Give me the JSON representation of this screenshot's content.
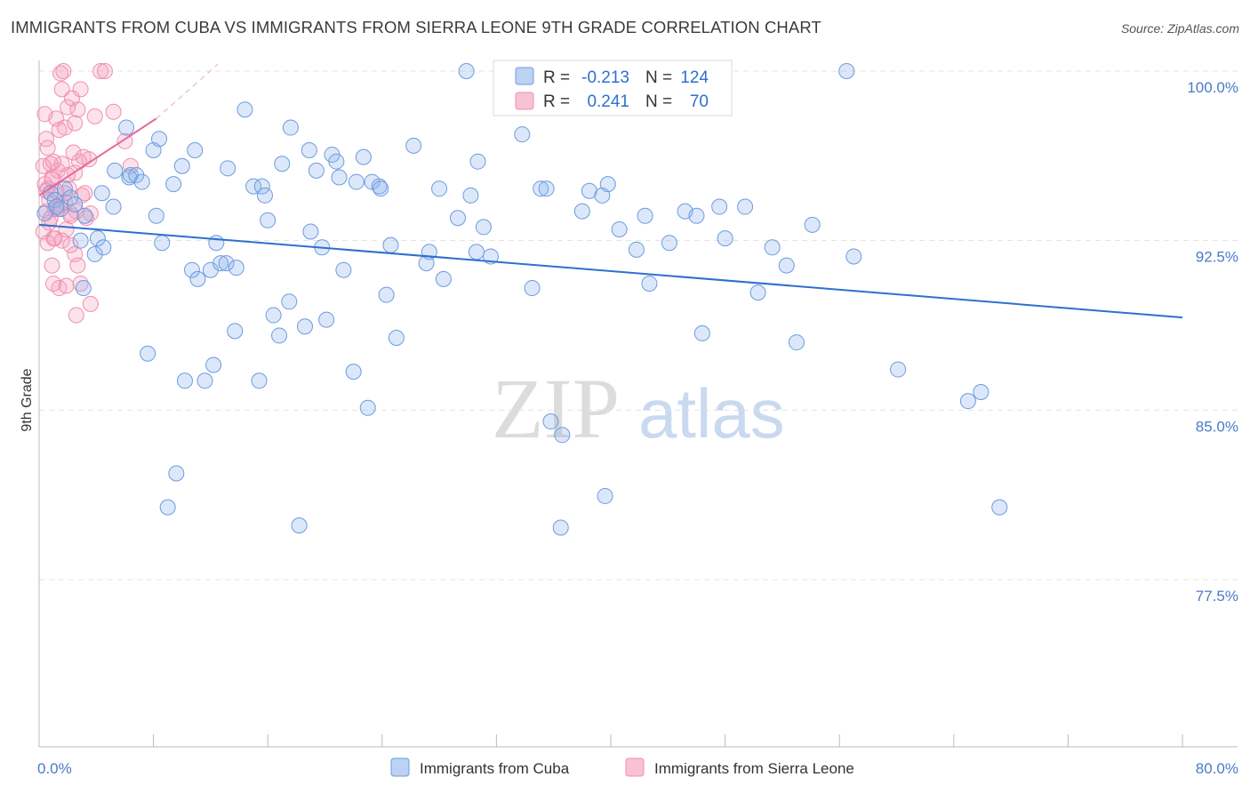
{
  "title": "IMMIGRANTS FROM CUBA VS IMMIGRANTS FROM SIERRA LEONE 9TH GRADE CORRELATION CHART",
  "source": "Source: ZipAtlas.com",
  "colors": {
    "cuba": "#6c9be0",
    "sierra_leone": "#f08fb0",
    "cuba_line": "#2f6fd0",
    "sierra_line": "#e8689a",
    "tick": "#4a7bc8"
  },
  "legend_top": [
    {
      "r_label": "R =",
      "r_value": "-0.213",
      "n_label": "N =",
      "n_value": "124"
    },
    {
      "r_label": "R =",
      "r_value": "0.241",
      "n_label": "N =",
      "n_value": "70"
    }
  ],
  "watermark": {
    "zip": "ZIP",
    "atlas": "atlas"
  },
  "chart_data": {
    "type": "scatter",
    "title": "IMMIGRANTS FROM CUBA VS IMMIGRANTS FROM SIERRA LEONE 9TH GRADE CORRELATION CHART",
    "xlabel": "",
    "ylabel": "9th Grade",
    "xlim": [
      0,
      80
    ],
    "ylim": [
      70,
      101.5
    ],
    "x_tick_labels": [
      "0.0%",
      "80.0%"
    ],
    "y_ticks": [
      100,
      92.5,
      85,
      77.5
    ],
    "y_tick_labels": [
      "100.0%",
      "92.5%",
      "85.0%",
      "77.5%"
    ],
    "legend": [
      "Immigrants from Cuba",
      "Immigrants from Sierra Leone"
    ],
    "series": [
      {
        "name": "Immigrants from Cuba",
        "r": -0.213,
        "n": 124,
        "trend": [
          [
            0.0,
            93.2
          ],
          [
            80.0,
            89.1
          ]
        ],
        "points": [
          [
            0.4,
            93.7
          ],
          [
            0.8,
            94.6
          ],
          [
            1.1,
            94.3
          ],
          [
            1.5,
            93.9
          ],
          [
            1.8,
            94.8
          ],
          [
            2.2,
            94.4
          ],
          [
            1.2,
            94.0
          ],
          [
            2.5,
            94.1
          ],
          [
            2.9,
            92.5
          ],
          [
            3.1,
            90.4
          ],
          [
            3.2,
            93.6
          ],
          [
            3.9,
            91.9
          ],
          [
            4.1,
            92.6
          ],
          [
            4.4,
            94.6
          ],
          [
            4.5,
            92.2
          ],
          [
            5.2,
            94.0
          ],
          [
            5.3,
            95.6
          ],
          [
            6.1,
            97.5
          ],
          [
            6.3,
            95.3
          ],
          [
            6.4,
            95.4
          ],
          [
            6.8,
            95.4
          ],
          [
            7.2,
            95.1
          ],
          [
            7.6,
            87.5
          ],
          [
            8.0,
            96.5
          ],
          [
            8.2,
            93.6
          ],
          [
            8.4,
            97.0
          ],
          [
            8.6,
            92.4
          ],
          [
            9.4,
            95.0
          ],
          [
            9.0,
            80.7
          ],
          [
            9.6,
            82.2
          ],
          [
            10.0,
            95.8
          ],
          [
            10.2,
            86.3
          ],
          [
            10.7,
            91.2
          ],
          [
            10.9,
            96.5
          ],
          [
            11.1,
            90.8
          ],
          [
            11.6,
            86.3
          ],
          [
            12.0,
            91.2
          ],
          [
            12.2,
            87.0
          ],
          [
            12.4,
            92.4
          ],
          [
            12.7,
            91.5
          ],
          [
            13.1,
            91.5
          ],
          [
            13.2,
            95.7
          ],
          [
            13.7,
            88.5
          ],
          [
            13.8,
            91.3
          ],
          [
            14.4,
            98.3
          ],
          [
            15.0,
            94.9
          ],
          [
            15.4,
            86.3
          ],
          [
            15.6,
            94.9
          ],
          [
            15.8,
            94.5
          ],
          [
            16.0,
            93.4
          ],
          [
            16.4,
            89.2
          ],
          [
            16.8,
            88.3
          ],
          [
            17.0,
            95.9
          ],
          [
            17.5,
            89.8
          ],
          [
            17.6,
            97.5
          ],
          [
            18.2,
            79.9
          ],
          [
            18.6,
            88.7
          ],
          [
            18.9,
            96.5
          ],
          [
            19.0,
            92.9
          ],
          [
            19.4,
            95.6
          ],
          [
            19.8,
            92.2
          ],
          [
            20.1,
            89.0
          ],
          [
            20.5,
            96.3
          ],
          [
            20.8,
            96.0
          ],
          [
            21.0,
            95.3
          ],
          [
            21.3,
            91.2
          ],
          [
            22.0,
            86.7
          ],
          [
            22.2,
            95.1
          ],
          [
            22.7,
            96.2
          ],
          [
            23.0,
            85.1
          ],
          [
            23.3,
            95.1
          ],
          [
            23.8,
            94.9
          ],
          [
            23.9,
            94.8
          ],
          [
            24.3,
            90.1
          ],
          [
            24.6,
            92.3
          ],
          [
            25.0,
            88.2
          ],
          [
            26.2,
            96.7
          ],
          [
            27.3,
            92.0
          ],
          [
            27.1,
            91.5
          ],
          [
            28.0,
            94.8
          ],
          [
            28.3,
            90.8
          ],
          [
            29.3,
            93.5
          ],
          [
            29.9,
            100.0
          ],
          [
            30.2,
            94.5
          ],
          [
            30.7,
            96.0
          ],
          [
            31.1,
            93.1
          ],
          [
            31.6,
            91.8
          ],
          [
            30.6,
            92.0
          ],
          [
            33.8,
            97.2
          ],
          [
            34.5,
            90.4
          ],
          [
            35.1,
            94.8
          ],
          [
            35.5,
            94.8
          ],
          [
            35.8,
            84.5
          ],
          [
            36.5,
            79.8
          ],
          [
            36.6,
            83.9
          ],
          [
            38.0,
            93.8
          ],
          [
            38.5,
            94.7
          ],
          [
            39.4,
            94.5
          ],
          [
            39.8,
            95.0
          ],
          [
            39.6,
            81.2
          ],
          [
            40.6,
            93.0
          ],
          [
            41.8,
            92.1
          ],
          [
            42.4,
            93.6
          ],
          [
            42.7,
            90.6
          ],
          [
            44.1,
            92.4
          ],
          [
            45.2,
            93.8
          ],
          [
            46.0,
            93.6
          ],
          [
            46.4,
            88.4
          ],
          [
            47.6,
            94.0
          ],
          [
            48.0,
            92.6
          ],
          [
            49.4,
            94.0
          ],
          [
            50.3,
            90.2
          ],
          [
            51.3,
            92.2
          ],
          [
            52.3,
            91.4
          ],
          [
            53.0,
            88.0
          ],
          [
            54.1,
            93.2
          ],
          [
            56.5,
            100.0
          ],
          [
            57.0,
            91.8
          ],
          [
            60.1,
            86.8
          ],
          [
            65.0,
            85.4
          ],
          [
            65.9,
            85.8
          ],
          [
            67.2,
            80.7
          ]
        ]
      },
      {
        "name": "Immigrants from Sierra Leone",
        "r": 0.241,
        "n": 70,
        "trend": [
          [
            0.0,
            94.5
          ],
          [
            8.2,
            97.9
          ]
        ],
        "trend_extension": [
          [
            8.2,
            97.9
          ],
          [
            12.5,
            100.3
          ]
        ],
        "points": [
          [
            0.3,
            95.8
          ],
          [
            0.4,
            95.0
          ],
          [
            0.5,
            93.8
          ],
          [
            0.6,
            94.8
          ],
          [
            0.7,
            94.3
          ],
          [
            0.8,
            93.5
          ],
          [
            0.9,
            95.3
          ],
          [
            1.0,
            92.6
          ],
          [
            1.1,
            93.9
          ],
          [
            1.2,
            94.7
          ],
          [
            1.3,
            95.6
          ],
          [
            1.5,
            94.1
          ],
          [
            1.6,
            95.9
          ],
          [
            1.8,
            94.2
          ],
          [
            1.9,
            93.0
          ],
          [
            2.0,
            95.4
          ],
          [
            2.1,
            94.8
          ],
          [
            2.2,
            93.7
          ],
          [
            2.4,
            96.4
          ],
          [
            2.5,
            95.5
          ],
          [
            2.6,
            93.8
          ],
          [
            2.8,
            96.0
          ],
          [
            3.0,
            94.5
          ],
          [
            3.3,
            93.5
          ],
          [
            3.5,
            96.1
          ],
          [
            0.4,
            98.1
          ],
          [
            0.5,
            97.0
          ],
          [
            0.6,
            96.6
          ],
          [
            0.8,
            95.9
          ],
          [
            1.0,
            96.0
          ],
          [
            1.2,
            97.9
          ],
          [
            1.4,
            97.4
          ],
          [
            1.6,
            99.2
          ],
          [
            1.8,
            97.5
          ],
          [
            2.0,
            98.4
          ],
          [
            2.3,
            98.8
          ],
          [
            2.5,
            97.7
          ],
          [
            2.7,
            98.3
          ],
          [
            2.9,
            99.2
          ],
          [
            3.1,
            96.2
          ],
          [
            3.9,
            98.0
          ],
          [
            4.3,
            100.0
          ],
          [
            4.6,
            100.0
          ],
          [
            5.2,
            98.2
          ],
          [
            6.0,
            96.9
          ],
          [
            6.4,
            95.8
          ],
          [
            1.5,
            99.9
          ],
          [
            1.7,
            100.0
          ],
          [
            0.3,
            92.9
          ],
          [
            0.6,
            92.4
          ],
          [
            0.9,
            91.4
          ],
          [
            1.1,
            92.6
          ],
          [
            1.4,
            90.4
          ],
          [
            1.6,
            92.5
          ],
          [
            1.9,
            90.5
          ],
          [
            2.2,
            92.3
          ],
          [
            2.5,
            91.9
          ],
          [
            2.7,
            91.4
          ],
          [
            0.5,
            94.7
          ],
          [
            0.7,
            93.3
          ],
          [
            1.0,
            90.6
          ],
          [
            2.9,
            90.6
          ],
          [
            1.3,
            93.9
          ],
          [
            2.2,
            93.6
          ],
          [
            3.6,
            93.7
          ],
          [
            2.6,
            89.2
          ],
          [
            3.6,
            89.7
          ],
          [
            1.8,
            94.6
          ],
          [
            3.2,
            94.6
          ],
          [
            0.9,
            95.2
          ]
        ]
      }
    ]
  }
}
